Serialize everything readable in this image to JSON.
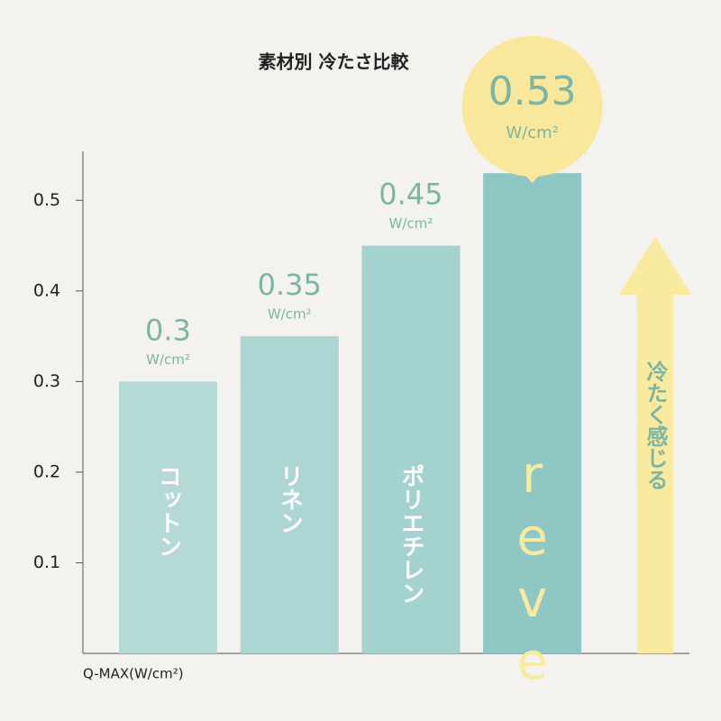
{
  "chart_data": {
    "type": "bar",
    "title": "素材別 冷たさ比較",
    "categories": [
      "コットン",
      "リネン",
      "ポリエチレン",
      "reve"
    ],
    "values": [
      0.3,
      0.35,
      0.45,
      0.53
    ],
    "value_unit": "W/cm²",
    "colors": [
      "#b4d9d6",
      "#acd6d3",
      "#a4d2ce",
      "#8fc7c4"
    ],
    "ylim": [
      0,
      0.55
    ],
    "yticks": [
      0.1,
      0.2,
      0.3,
      0.4,
      0.5
    ],
    "y_axis_label": "Q-MAX(W/cm²)",
    "arrow_label": "冷たく感じる"
  }
}
